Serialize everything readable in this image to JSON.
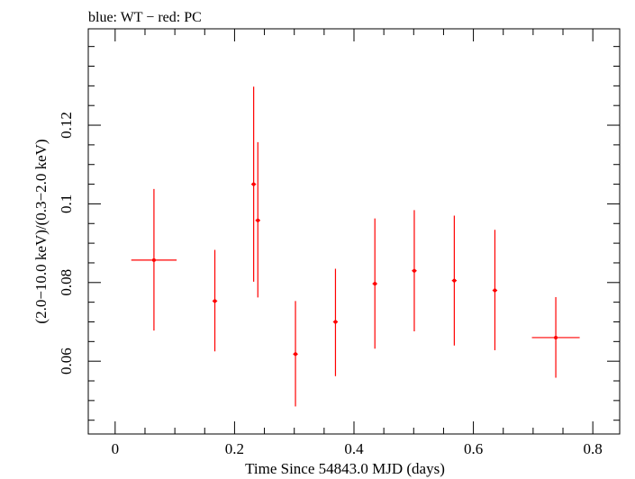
{
  "chart_data": {
    "type": "scatter",
    "title": "blue: WT − red: PC",
    "xlabel": "Time Since 54843.0 MJD (days)",
    "ylabel": "(2.0−10.0 keV)/(0.3−2.0 keV)",
    "xlim": [
      -0.045,
      0.845
    ],
    "ylim": [
      0.0415,
      0.1445
    ],
    "x_major_ticks": [
      0,
      0.2,
      0.4,
      0.6,
      0.8
    ],
    "x_tick_labels": [
      "0",
      "0.2",
      "0.4",
      "0.6",
      "0.8"
    ],
    "y_major_ticks": [
      0.06,
      0.08,
      0.1,
      0.12
    ],
    "y_tick_labels": [
      "0.06",
      "0.08",
      "0.1",
      "0.12"
    ],
    "grid": false,
    "series": [
      {
        "color": "#ff0000",
        "points": [
          {
            "x": 0.065,
            "xerr": 0.038,
            "y": 0.0857,
            "ylow": 0.0678,
            "yhigh": 0.1038
          },
          {
            "x": 0.167,
            "xerr": 0.0,
            "y": 0.0753,
            "ylow": 0.0625,
            "yhigh": 0.0883
          },
          {
            "x": 0.232,
            "xerr": 0.0,
            "y": 0.105,
            "ylow": 0.0802,
            "yhigh": 0.1298
          },
          {
            "x": 0.239,
            "xerr": 0.0,
            "y": 0.0958,
            "ylow": 0.0762,
            "yhigh": 0.1157
          },
          {
            "x": 0.302,
            "xerr": 0.0,
            "y": 0.0618,
            "ylow": 0.0485,
            "yhigh": 0.0753
          },
          {
            "x": 0.369,
            "xerr": 0.0,
            "y": 0.07,
            "ylow": 0.0562,
            "yhigh": 0.0835
          },
          {
            "x": 0.435,
            "xerr": 0.0,
            "y": 0.0797,
            "ylow": 0.0632,
            "yhigh": 0.0963
          },
          {
            "x": 0.501,
            "xerr": 0.0,
            "y": 0.083,
            "ylow": 0.0676,
            "yhigh": 0.0984
          },
          {
            "x": 0.568,
            "xerr": 0.0,
            "y": 0.0805,
            "ylow": 0.064,
            "yhigh": 0.097
          },
          {
            "x": 0.636,
            "xerr": 0.0,
            "y": 0.078,
            "ylow": 0.0628,
            "yhigh": 0.0934
          },
          {
            "x": 0.738,
            "xerr": 0.04,
            "y": 0.066,
            "ylow": 0.0558,
            "yhigh": 0.0763
          }
        ]
      }
    ]
  }
}
